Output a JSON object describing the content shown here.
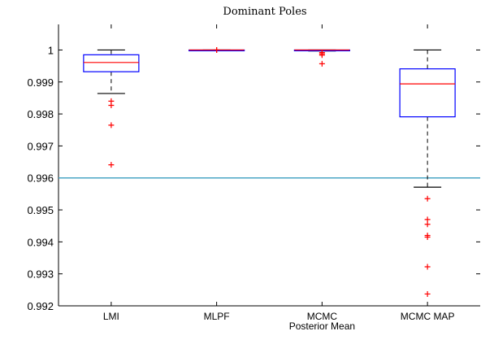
{
  "chart_data": {
    "type": "box",
    "title": "Dominant Poles",
    "xlabel": "",
    "ylabel": "",
    "ylim": [
      0.992,
      1.0008
    ],
    "yticks": [
      1,
      0.999,
      0.998,
      0.997,
      0.996,
      0.995,
      0.994,
      0.993,
      0.992
    ],
    "ytick_labels": [
      "1",
      "0.999",
      "0.998",
      "0.997",
      "0.996",
      "0.995",
      "0.994",
      "0.993",
      "0.992"
    ],
    "grid": false,
    "reference_line": {
      "y": 0.996,
      "color": "#4aa6c4"
    },
    "colors": {
      "box": "#0000ff",
      "median": "#ff0000",
      "whisker": "#000000",
      "outlier": "#ff0000",
      "axis": "#000000"
    },
    "categories": [
      {
        "label_lines": [
          "LMI"
        ],
        "q1": 0.99932,
        "median": 0.99961,
        "q3": 0.99985,
        "whisker_low": 0.99864,
        "whisker_high": 1.0,
        "outliers": [
          0.9984,
          0.99827,
          0.99765,
          0.99641
        ]
      },
      {
        "label_lines": [
          "MLPF"
        ],
        "q1": 0.99999,
        "median": 1.0,
        "q3": 1.0,
        "whisker_low": 0.99999,
        "whisker_high": 1.0,
        "outliers": [
          1.0,
          1.0
        ]
      },
      {
        "label_lines": [
          "MCMC",
          "Posterior Mean"
        ],
        "q1": 0.99998,
        "median": 1.0,
        "q3": 1.0,
        "whisker_low": 0.99997,
        "whisker_high": 1.0,
        "outliers": [
          0.99992,
          0.99988,
          0.99984,
          0.99957
        ]
      },
      {
        "label_lines": [
          "MCMC MAP"
        ],
        "q1": 0.99791,
        "median": 0.99894,
        "q3": 0.99941,
        "whisker_low": 0.99571,
        "whisker_high": 1.0,
        "outliers": [
          0.99535,
          0.9947,
          0.99455,
          0.9942,
          0.99415,
          0.99322,
          0.99237
        ]
      }
    ]
  }
}
